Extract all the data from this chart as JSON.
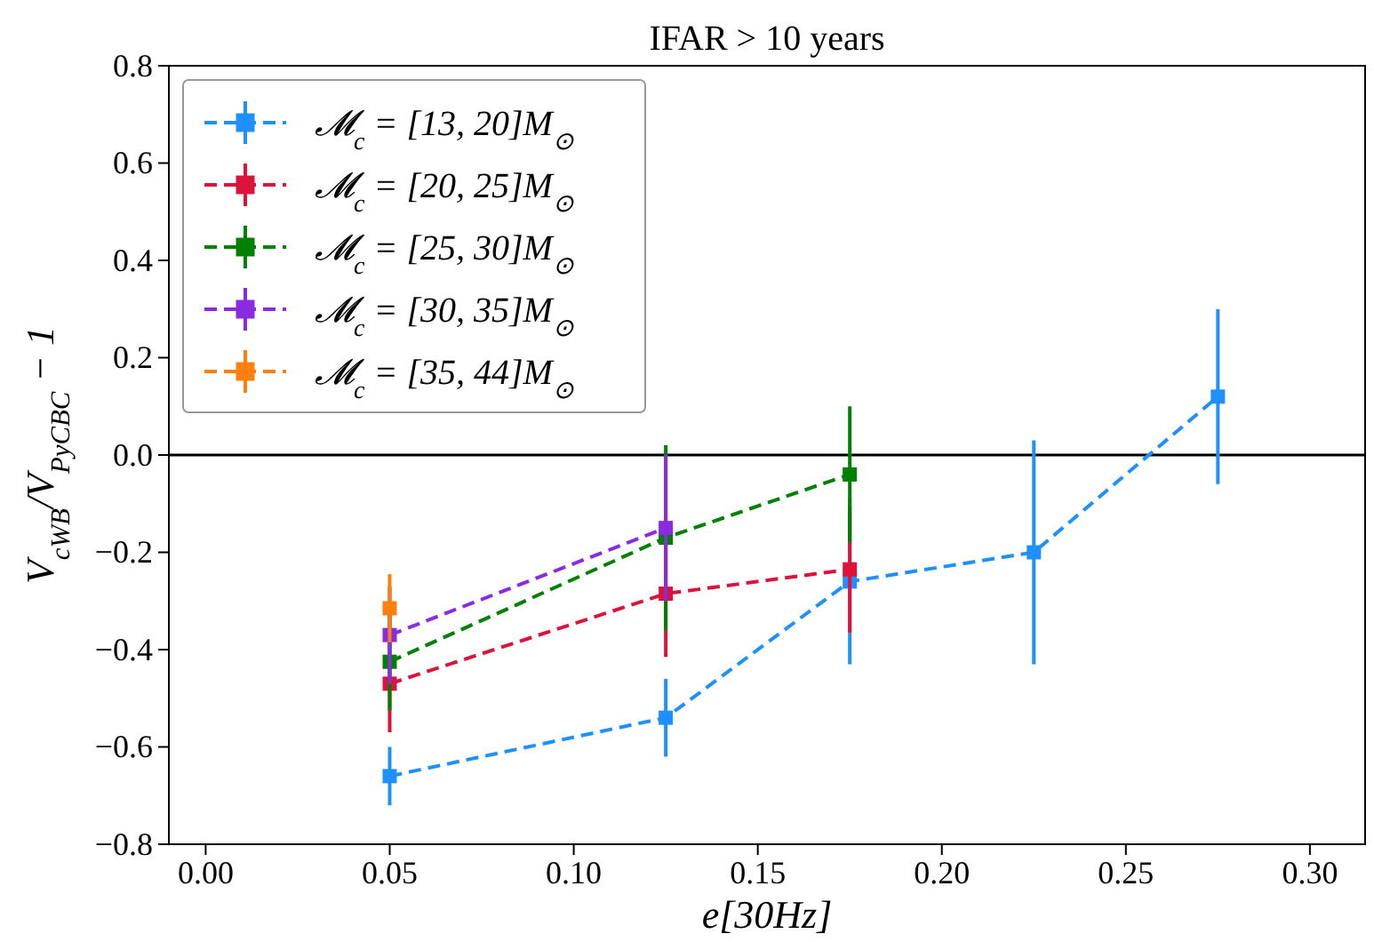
{
  "chart_data": {
    "type": "line",
    "title": "IFAR > 10 years",
    "xlabel": "e[30Hz]",
    "ylabel": "V$_{cWB}$/V$_{PyCBC}$ − 1",
    "xlim": [
      -0.01,
      0.315
    ],
    "xticks": [
      {
        "value": 0,
        "label": "0.00"
      },
      {
        "value": 0.05,
        "label": "0.05"
      },
      {
        "value": 0.1,
        "label": "0.10"
      },
      {
        "value": 0.15,
        "label": "0.15"
      },
      {
        "value": 0.2,
        "label": "0.20"
      },
      {
        "value": 0.25,
        "label": "0.25"
      },
      {
        "value": 0.3,
        "label": "0.30"
      }
    ],
    "ylim": [
      -0.8,
      0.8
    ],
    "yticks": [
      {
        "value": -0.8,
        "label": "−0.8"
      },
      {
        "value": -0.6,
        "label": "−0.6"
      },
      {
        "value": -0.4,
        "label": "−0.4"
      },
      {
        "value": -0.2,
        "label": "−0.2"
      },
      {
        "value": 0,
        "label": "0.0"
      },
      {
        "value": 0.2,
        "label": "0.2"
      },
      {
        "value": 0.4,
        "label": "0.4"
      },
      {
        "value": 0.6,
        "label": "0.6"
      },
      {
        "value": 0.8,
        "label": "0.8"
      }
    ],
    "marker": "square",
    "line_style": "dashed",
    "legend": "top left",
    "grid": false,
    "ref_lines": [
      {
        "axis": "y",
        "value": 0,
        "color": "#000000",
        "line_style": "solid"
      }
    ],
    "series": [
      {
        "name": "𝓜$_{c}$ = [13, 20]M$_{⊙}$",
        "color": "#1e90ff",
        "x": [
          0.05,
          0.125,
          0.175,
          0.225,
          0.275
        ],
        "values": [
          -0.66,
          -0.54,
          -0.26,
          -0.2,
          0.12
        ],
        "errors": [
          0.06,
          0.08,
          0.17,
          0.23,
          0.18
        ]
      },
      {
        "name": "𝓜$_{c}$ = [20, 25]M$_{⊙}$",
        "color": "#dc143c",
        "x": [
          0.05,
          0.125,
          0.175
        ],
        "values": [
          -0.47,
          -0.285,
          -0.235
        ],
        "errors": [
          0.1,
          0.13,
          0.13
        ]
      },
      {
        "name": "𝓜$_{c}$ = [25, 30]M$_{⊙}$",
        "color": "#008000",
        "x": [
          0.05,
          0.125,
          0.175
        ],
        "values": [
          -0.425,
          -0.17,
          -0.04
        ],
        "errors": [
          0.1,
          0.19,
          0.14
        ]
      },
      {
        "name": "𝓜$_{c}$ = [30, 35]M$_{⊙}$",
        "color": "#8a2be2",
        "x": [
          0.05,
          0.125
        ],
        "values": [
          -0.37,
          -0.15
        ],
        "errors": [
          0.1,
          0.15
        ]
      },
      {
        "name": "𝓜$_{c}$ = [35, 44]M$_{⊙}$",
        "color": "#ff7f0e",
        "x": [
          0.05
        ],
        "values": [
          -0.315
        ],
        "errors": [
          0.07
        ]
      }
    ]
  }
}
